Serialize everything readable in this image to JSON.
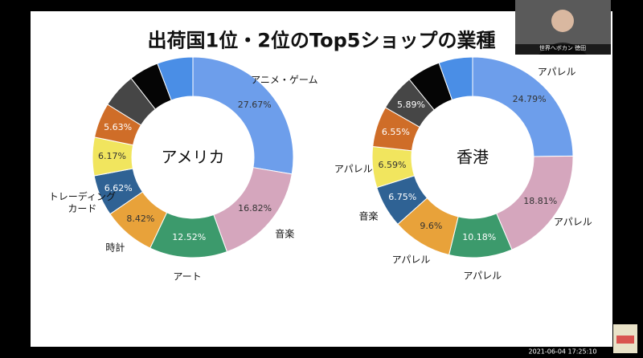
{
  "slide": {
    "title": "出荷国1位・2位のTop5ショップの業種"
  },
  "overlay": {
    "webcam_name": "世界へボカン 徳田",
    "timestamp": "2021-06-04 17:25:10"
  },
  "chart_data": [
    {
      "type": "donut",
      "center_label": "アメリカ",
      "categories": [
        "アニメ・ゲーム",
        "音楽",
        "アート",
        "時計",
        "トレーディング\nカード",
        null,
        null,
        null,
        null,
        null
      ],
      "values": [
        27.67,
        16.82,
        12.52,
        8.42,
        6.62,
        6.17,
        5.63,
        5.6,
        4.8,
        5.75
      ],
      "value_labels": [
        "27.67%",
        "16.82%",
        "12.52%",
        "8.42%",
        "6.62%",
        "6.17%",
        "5.63%",
        null,
        null,
        null
      ],
      "colors": [
        "#6d9eeb",
        "#d5a6bd",
        "#3c9a6c",
        "#e8a23a",
        "#2f6294",
        "#f1e55e",
        "#cf6d28",
        "#464646",
        "#050505",
        "#4a8ee6"
      ]
    },
    {
      "type": "donut",
      "center_label": "香港",
      "categories": [
        "アパレル",
        "アパレル",
        "アパレル",
        "アパレル",
        "音楽",
        "アパレル",
        null,
        null,
        null,
        null
      ],
      "values": [
        24.79,
        18.81,
        10.18,
        9.6,
        6.75,
        6.59,
        6.55,
        5.89,
        5.4,
        5.44
      ],
      "value_labels": [
        "24.79%",
        "18.81%",
        "10.18%",
        "9.6%",
        "6.75%",
        "6.59%",
        "6.55%",
        "5.89%",
        null,
        null
      ],
      "colors": [
        "#6d9eeb",
        "#d5a6bd",
        "#3c9a6c",
        "#e8a23a",
        "#2f6294",
        "#f1e55e",
        "#cf6d28",
        "#464646",
        "#050505",
        "#4a8ee6"
      ]
    }
  ]
}
